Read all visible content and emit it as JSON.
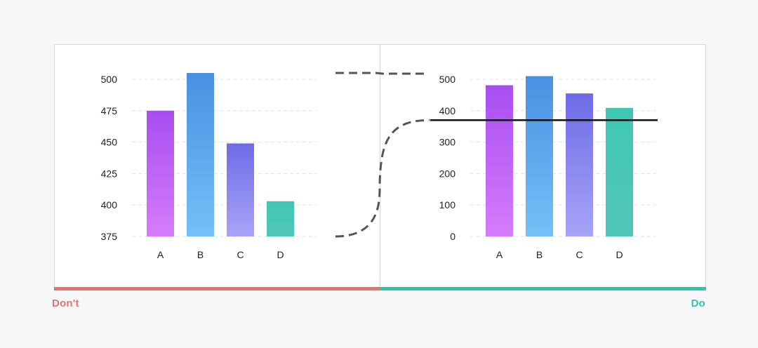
{
  "labels": {
    "dont": "Don't",
    "do": "Do"
  },
  "colors": {
    "background": "#f7f7f7",
    "dont": "#e8716a",
    "do": "#2ec4a7",
    "gradients": {
      "A": [
        "#a84ef0",
        "#d57cfb"
      ],
      "B": [
        "#4a90e2",
        "#74c0f8"
      ],
      "C": [
        "#6e6be6",
        "#a7a4f8"
      ],
      "D": [
        "#3fc7b4",
        "#52c6bb"
      ]
    }
  },
  "chart_data": [
    {
      "type": "bar",
      "panel": "dont",
      "categories": [
        "A",
        "B",
        "C",
        "D"
      ],
      "values": [
        475,
        505,
        449,
        403
      ],
      "yticks": [
        375,
        400,
        425,
        450,
        475,
        500
      ],
      "ylim": [
        375,
        505
      ],
      "grid": true,
      "title": "",
      "xlabel": "",
      "ylabel": ""
    },
    {
      "type": "bar",
      "panel": "do",
      "categories": [
        "A",
        "B",
        "C",
        "D"
      ],
      "values": [
        481,
        510,
        455,
        409
      ],
      "yticks": [
        0,
        100,
        200,
        300,
        400,
        500
      ],
      "ylim": [
        0,
        510
      ],
      "grid": true,
      "reference_line": 370,
      "title": "",
      "xlabel": "",
      "ylabel": ""
    }
  ]
}
